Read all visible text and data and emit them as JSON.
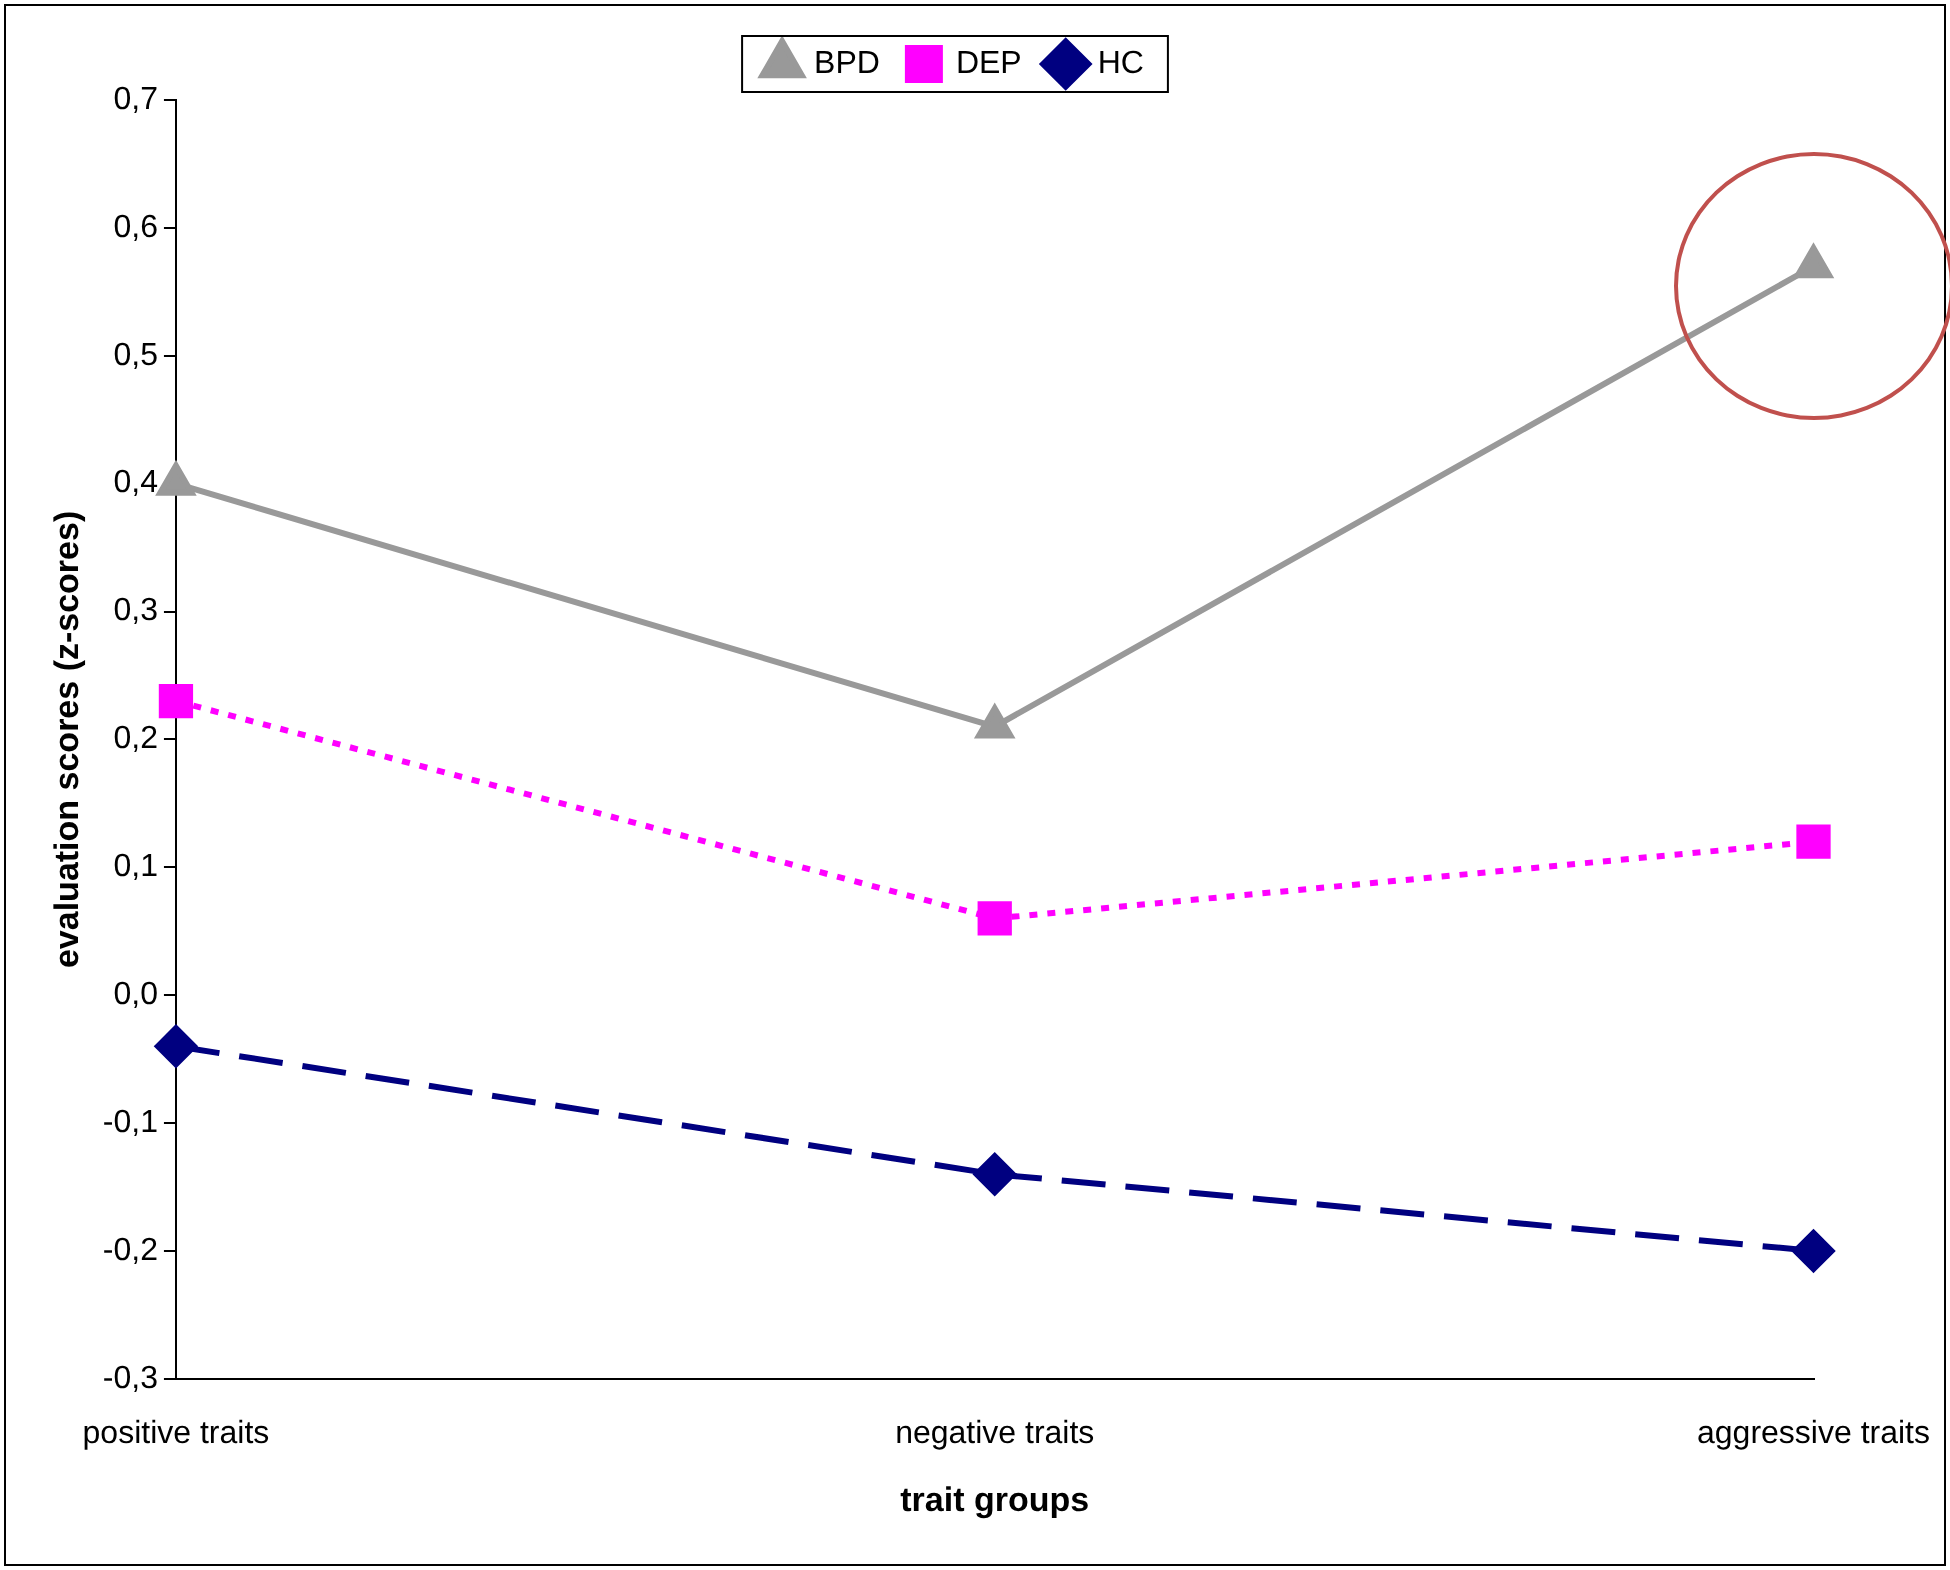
{
  "chart_data": {
    "type": "line",
    "xlabel": "trait groups",
    "ylabel": "evaluation scores (z-scores)",
    "categories": [
      "positive traits",
      "negative traits",
      "aggressive traits"
    ],
    "series": [
      {
        "name": "BPD",
        "color": "#999999",
        "values": [
          0.4,
          0.21,
          0.57
        ],
        "marker": "triangle",
        "line_style": "solid"
      },
      {
        "name": "DEP",
        "color": "#ff00ff",
        "values": [
          0.23,
          0.06,
          0.12
        ],
        "marker": "square",
        "line_style": "dotted"
      },
      {
        "name": "HC",
        "color": "#000080",
        "values": [
          -0.04,
          -0.14,
          -0.2
        ],
        "marker": "diamond",
        "line_style": "dashed"
      }
    ],
    "ylim": [
      -0.3,
      0.7
    ],
    "yticks": [
      {
        "value": -0.3,
        "label": "-0,3"
      },
      {
        "value": -0.2,
        "label": "-0,2"
      },
      {
        "value": -0.1,
        "label": "-0,1"
      },
      {
        "value": 0,
        "label": "0,0"
      },
      {
        "value": 0.1,
        "label": "0,1"
      },
      {
        "value": 0.2,
        "label": "0,2"
      },
      {
        "value": 0.3,
        "label": "0,3"
      },
      {
        "value": 0.4,
        "label": "0,4"
      },
      {
        "value": 0.5,
        "label": "0,5"
      },
      {
        "value": 0.6,
        "label": "0,6"
      },
      {
        "value": 0.7,
        "label": "0,7"
      }
    ],
    "grid": false,
    "legend": "top"
  }
}
